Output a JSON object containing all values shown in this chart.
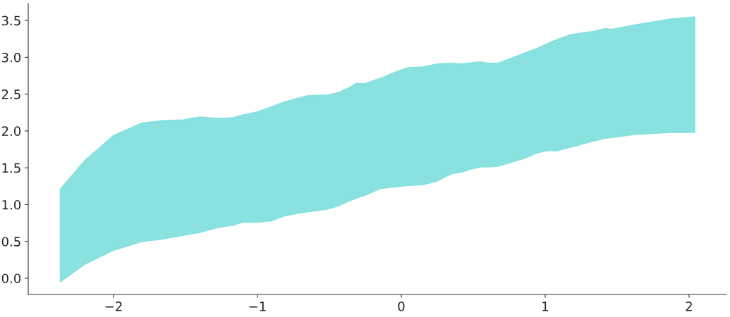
{
  "chart_data": {
    "type": "line",
    "xlim": [
      -2.593,
      2.26
    ],
    "ylim": [
      -0.22,
      3.73
    ],
    "xticks": [
      {
        "value": -2,
        "label": "−2"
      },
      {
        "value": -1,
        "label": "−1"
      },
      0,
      1,
      2
    ],
    "yticks": [
      {
        "value": 0,
        "label": "0.0"
      },
      {
        "value": 0.5,
        "label": "0.5"
      },
      {
        "value": 1,
        "label": "1.0"
      },
      {
        "value": 1.5,
        "label": "1.5"
      },
      {
        "value": 2,
        "label": "2.0"
      },
      {
        "value": 2.5,
        "label": "2.5"
      },
      {
        "value": 3,
        "label": "3.0"
      },
      {
        "value": 3.5,
        "label": "3.5"
      }
    ],
    "grid": false,
    "series": [
      {
        "color": "#7ddfdd",
        "x": [
          -2.37,
          -2.2,
          -2.0,
          -1.8,
          -1.66,
          -1.52,
          -1.4,
          -1.27,
          -1.17,
          -1.1,
          -1.0,
          -0.9,
          -0.82,
          -0.73,
          -0.65,
          -0.51,
          -0.44,
          -0.36,
          -0.31,
          -0.26,
          -0.14,
          -0.04,
          0.05,
          0.15,
          0.25,
          0.35,
          0.42,
          0.5,
          0.55,
          0.6,
          0.67,
          0.74,
          0.86,
          0.94,
          1.01,
          1.08,
          1.18,
          1.33,
          1.42,
          1.46,
          1.62,
          1.87,
          2.04
        ],
        "values": [
          null,
          null,
          null,
          null,
          null,
          null,
          null,
          null,
          null,
          null,
          null,
          null,
          null,
          null,
          null,
          null,
          null,
          null,
          null,
          null,
          null,
          null,
          null,
          null,
          null,
          null,
          null,
          null,
          null,
          null,
          null,
          null,
          null,
          null,
          null,
          null,
          null,
          null,
          null,
          null,
          null,
          null,
          null
        ],
        "upper": [
          1.21,
          1.6,
          1.94,
          2.11,
          2.14,
          2.15,
          2.19,
          2.17,
          2.18,
          2.22,
          2.26,
          2.33,
          2.39,
          2.44,
          2.48,
          2.49,
          2.52,
          2.59,
          2.65,
          2.64,
          2.72,
          2.8,
          2.86,
          2.87,
          2.91,
          2.92,
          2.91,
          2.93,
          2.94,
          2.92,
          2.92,
          2.97,
          3.06,
          3.12,
          3.18,
          3.24,
          3.31,
          3.35,
          3.39,
          3.38,
          3.44,
          3.52,
          3.55
        ],
        "lower": [
          -0.05,
          0.19,
          0.38,
          0.5,
          0.53,
          0.58,
          0.62,
          0.69,
          0.72,
          0.76,
          0.76,
          0.78,
          0.84,
          0.88,
          0.9,
          0.94,
          0.98,
          1.05,
          1.09,
          1.12,
          1.22,
          1.24,
          1.26,
          1.27,
          1.32,
          1.42,
          1.44,
          1.49,
          1.51,
          1.51,
          1.52,
          1.56,
          1.63,
          1.7,
          1.73,
          1.73,
          1.78,
          1.86,
          1.9,
          1.91,
          1.95,
          1.98,
          1.98
        ]
      }
    ]
  }
}
